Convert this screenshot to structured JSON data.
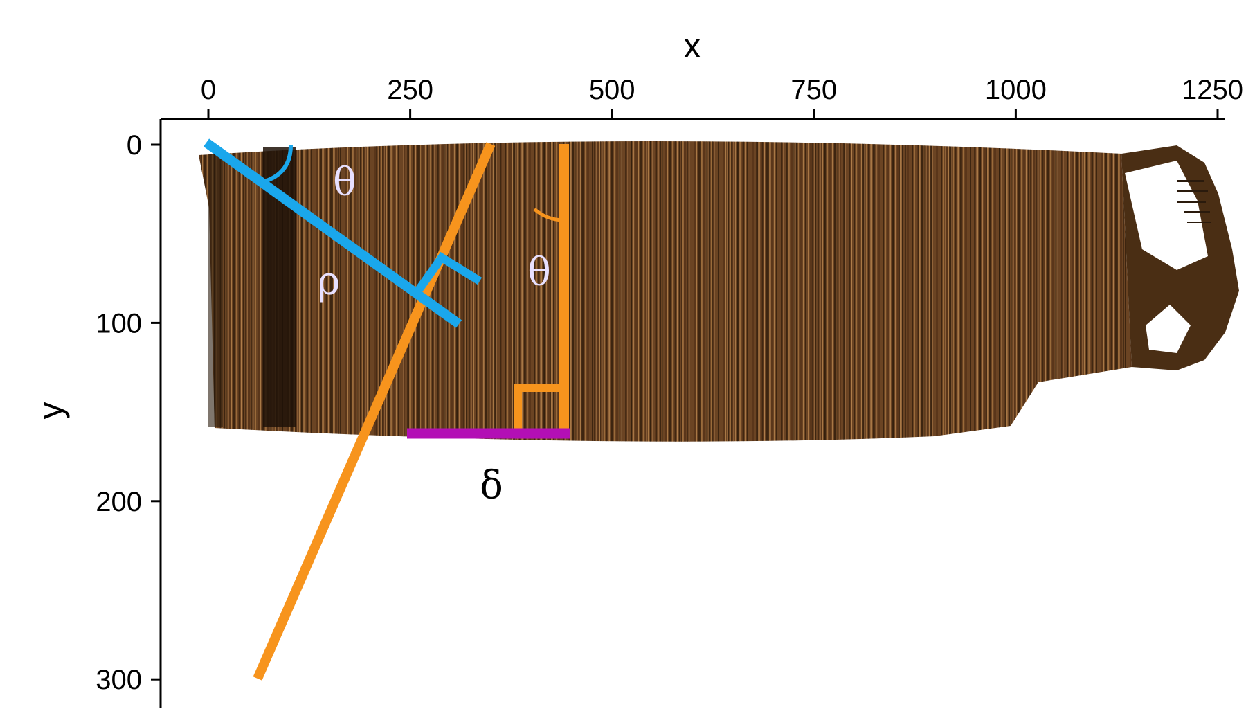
{
  "axes": {
    "xlabel": "x",
    "ylabel": "y",
    "x_ticks": [
      "0",
      "250",
      "500",
      "750",
      "1000",
      "1250"
    ],
    "y_ticks": [
      "0",
      "100",
      "200",
      "300"
    ],
    "x_axis_position": "top",
    "y_axis_inverted": true
  },
  "annotations": {
    "theta_blue": "θ",
    "rho": "ρ",
    "theta_orange": "θ",
    "delta": "δ"
  },
  "colors": {
    "wood_dark": "#3a2410",
    "wood_mid": "#6b4423",
    "wood_light": "#9a6b3a",
    "normal_line": "#1aa7ec",
    "hough_line": "#f7941d",
    "delta_segment": "#b30fb5",
    "greek_light": "#e8e0ff"
  }
}
